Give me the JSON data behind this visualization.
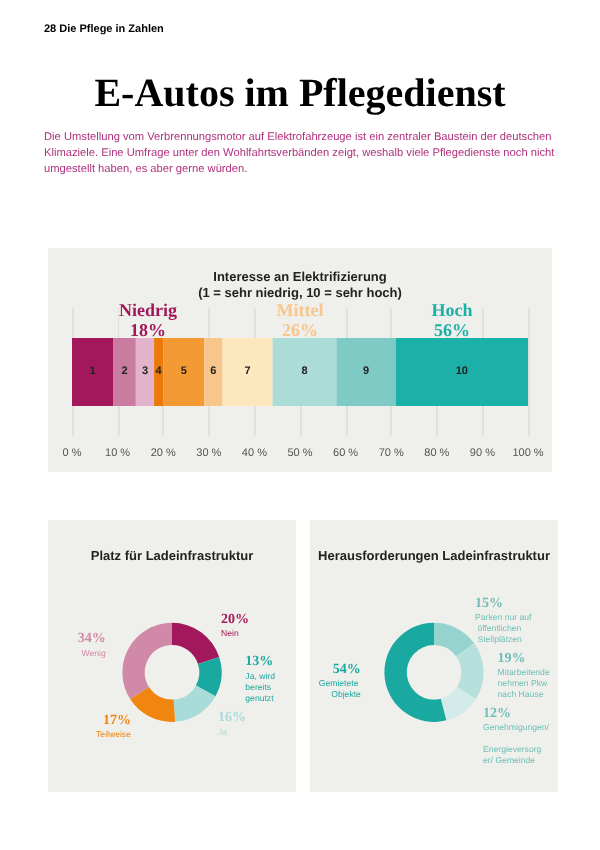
{
  "chart_data": [
    {
      "type": "bar",
      "orientation": "horizontal",
      "stacked": true,
      "title": "Interesse an Elektrifizierung\n(1 = sehr niedrig, 10 = sehr hoch)",
      "categories": [
        null
      ],
      "series": [
        {
          "name": "1",
          "color": "#a3185c",
          "values": [
            9
          ]
        },
        {
          "name": "2",
          "color": "#c97ba0",
          "values": [
            5
          ]
        },
        {
          "name": "3",
          "color": "#e2b3ca",
          "values": [
            4
          ]
        },
        {
          "name": "4",
          "color": "#ec7a0a",
          "values": [
            2
          ]
        },
        {
          "name": "5",
          "color": "#f39a35",
          "values": [
            9
          ]
        },
        {
          "name": "6",
          "color": "#f8c58a",
          "values": [
            4
          ]
        },
        {
          "name": "7",
          "color": "#fde7bd",
          "values": [
            11
          ]
        },
        {
          "name": "8",
          "color": "#abdcd8",
          "values": [
            14
          ]
        },
        {
          "name": "9",
          "color": "#7ecbc5",
          "values": [
            13
          ]
        },
        {
          "name": "10",
          "color": "#1bb0a8",
          "values": [
            29
          ]
        }
      ],
      "xlim": [
        0,
        100
      ],
      "xticks": [
        {
          "value": 0,
          "label": "0 %"
        },
        {
          "value": 10,
          "label": "10 %"
        },
        {
          "value": 20,
          "label": "20 %"
        },
        {
          "value": 30,
          "label": "30 %"
        },
        {
          "value": 40,
          "label": "40 %"
        },
        {
          "value": 50,
          "label": "50 %"
        },
        {
          "value": 60,
          "label": "60 %"
        },
        {
          "value": 70,
          "label": "70 %"
        },
        {
          "value": 80,
          "label": "80 %"
        },
        {
          "value": 90,
          "label": "90 %"
        },
        {
          "value": 100,
          "label": "100 %"
        }
      ],
      "grid": "x",
      "legend": false,
      "annotations": [
        "28 Die Pflege in Zahlen",
        "E-Autos im Pflegedienst",
        "Die Umstellung vom Verbrennungsmotor auf Elektrofahrzeuge ist ein zentraler Baustein der deutschen Klimaziele. Eine Umfrage unter den Wohlfahrtsverbänden zeigt, weshalb viele Pflegedienste noch nicht umgestellt haben, es aber gerne würden.",
        "Niedrig\n18%",
        "Mittel\n26%",
        "Hoch\n56%"
      ]
    },
    {
      "type": "donut",
      "title": "Platz für Ladeinfrastruktur",
      "categories": [
        "Nein",
        "Ja, wird bereits genutzt",
        "Ja",
        "Teilweise",
        "Wenig"
      ],
      "values": [
        20,
        13,
        16,
        17,
        34
      ],
      "value_labels": [
        "20%",
        "13%",
        "16%",
        "17%",
        "34%"
      ],
      "colors": [
        "#a3185c",
        "#1aa9a0",
        "#a8dcd8",
        "#f0860f",
        "#d08aa8"
      ],
      "legend": false
    },
    {
      "type": "donut",
      "title": "Herausforderungen Ladeinfrastruktur",
      "categories": [
        "Parken nur auf öffentlichen Stellplätzen",
        "Mitarbeitende nehmen Pkw nach Hause",
        "Genehmigungen/ Energieversorger/ Gemeinde",
        "Gemietete Objekte"
      ],
      "values": [
        15,
        19,
        12,
        54
      ],
      "value_labels": [
        "15%",
        "19%",
        "12%",
        "54%"
      ],
      "colors": [
        "#97d3ce",
        "#b5e0dc",
        "#d3ebe8",
        "#1aa9a0"
      ],
      "legend": false
    }
  ]
}
